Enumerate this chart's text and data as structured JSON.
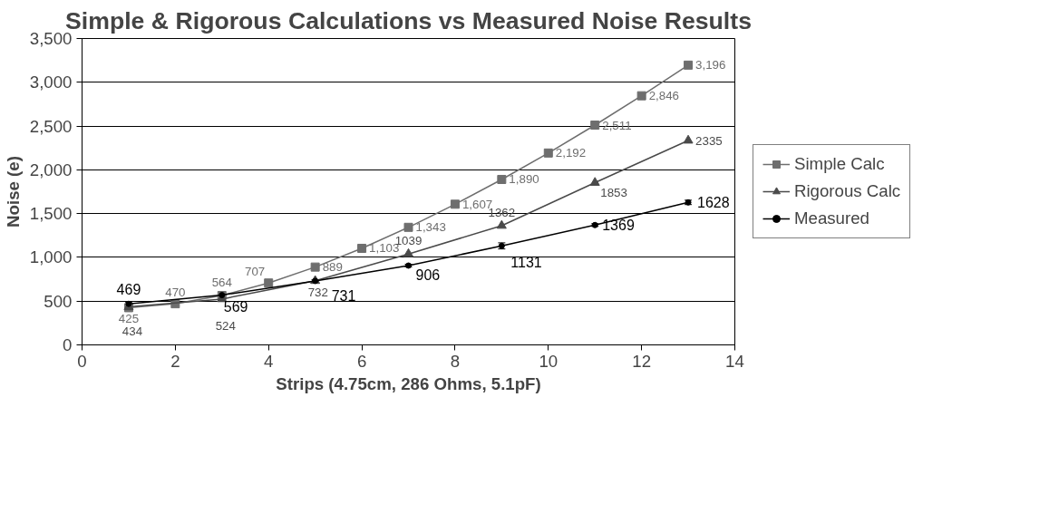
{
  "chart_data": {
    "type": "line",
    "title": "Simple & Rigorous Calculations vs Measured Noise Results",
    "xlabel": "Strips (4.75cm, 286 Ohms, 5.1pF)",
    "ylabel": "Noise (e)",
    "xlim": [
      0,
      14
    ],
    "xticks": [
      0,
      2,
      4,
      6,
      8,
      10,
      12,
      14
    ],
    "ylim": [
      0,
      3500
    ],
    "yticks": [
      0,
      500,
      {
        "value": 1000,
        "label": "1,000"
      },
      {
        "value": 1500,
        "label": "1,500"
      },
      {
        "value": 2000,
        "label": "2,000"
      },
      {
        "value": 2500,
        "label": "2,500"
      },
      {
        "value": 3000,
        "label": "3,000"
      },
      {
        "value": 3500,
        "label": "3,500"
      }
    ],
    "grid": "y",
    "legend": "right",
    "series": [
      {
        "name": "Simple Calc",
        "color": "#6e6e6e",
        "marker": "square",
        "x": [
          1,
          2,
          3,
          4,
          5,
          6,
          7,
          8,
          9,
          10,
          11,
          12,
          13
        ],
        "values": [
          425,
          470,
          564,
          707,
          889,
          1103,
          1343,
          1607,
          1890,
          2192,
          2511,
          2846,
          3196
        ],
        "value_labels": [
          "425",
          "470",
          "564",
          "707",
          "889",
          "1,103",
          "1,343",
          "1,607",
          "1,890",
          "2,192",
          "2,511",
          "2,846",
          "3,196"
        ]
      },
      {
        "name": "Rigorous Calc",
        "color": "#4a4a4a",
        "marker": "triangle",
        "x": [
          1,
          3,
          5,
          7,
          9,
          11,
          13
        ],
        "values": [
          434,
          524,
          732,
          1039,
          1362,
          1853,
          2335
        ],
        "value_labels": [
          "434",
          "524",
          "732",
          "1039",
          "1362",
          "1853",
          "2335"
        ]
      },
      {
        "name": "Measured",
        "color": "#000000",
        "marker": "circle",
        "x": [
          1,
          3,
          5,
          7,
          9,
          11,
          13
        ],
        "values": [
          469,
          569,
          731,
          906,
          1131,
          1369,
          1628
        ],
        "errors": [
          20,
          20,
          15,
          15,
          35,
          15,
          25
        ],
        "value_labels": [
          "469",
          "569",
          "731",
          "906",
          "1131",
          "1369",
          "1628"
        ]
      }
    ]
  }
}
